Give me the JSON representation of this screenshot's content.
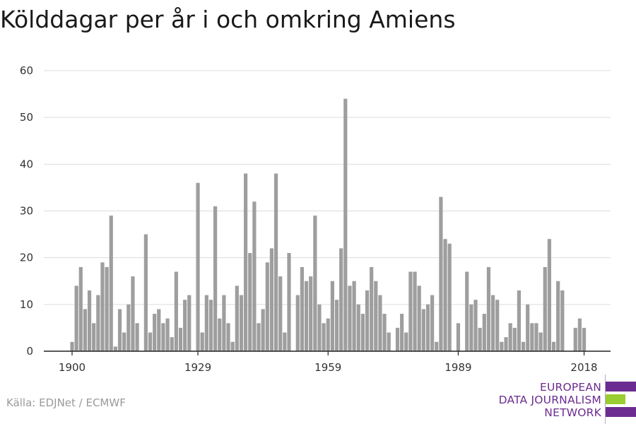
{
  "title": "Kölddagar per år i och omkring Amiens",
  "source": "Källa: EDJNet / ECMWF",
  "logo": {
    "line1": "EUROPEAN",
    "line2": "DATA JOURNALISM",
    "line3": "NETWORK"
  },
  "colors": {
    "bar": "#9e9e9e",
    "grid": "#dcdcdc",
    "axis": "#222222",
    "logo_purple": "#6b2c91",
    "logo_green": "#9acd32"
  },
  "chart_data": {
    "type": "bar",
    "title": "Kölddagar per år i och omkring Amiens",
    "xlabel": "",
    "ylabel": "",
    "ylim": [
      0,
      60
    ],
    "yticks": [
      0,
      10,
      20,
      30,
      40,
      50,
      60
    ],
    "xticks": [
      1900,
      1929,
      1959,
      1989,
      2018
    ],
    "grid": true,
    "x": [
      1900,
      1901,
      1902,
      1903,
      1904,
      1905,
      1906,
      1907,
      1908,
      1909,
      1910,
      1911,
      1912,
      1913,
      1914,
      1915,
      1916,
      1917,
      1918,
      1919,
      1920,
      1921,
      1922,
      1923,
      1924,
      1925,
      1926,
      1927,
      1928,
      1929,
      1930,
      1931,
      1932,
      1933,
      1934,
      1935,
      1936,
      1937,
      1938,
      1939,
      1940,
      1941,
      1942,
      1943,
      1944,
      1945,
      1946,
      1947,
      1948,
      1949,
      1950,
      1951,
      1952,
      1953,
      1954,
      1955,
      1956,
      1957,
      1958,
      1959,
      1960,
      1961,
      1962,
      1963,
      1964,
      1965,
      1966,
      1967,
      1968,
      1969,
      1970,
      1971,
      1972,
      1973,
      1974,
      1975,
      1976,
      1977,
      1978,
      1979,
      1980,
      1981,
      1982,
      1983,
      1984,
      1985,
      1986,
      1987,
      1988,
      1989,
      1990,
      1991,
      1992,
      1993,
      1994,
      1995,
      1996,
      1997,
      1998,
      1999,
      2000,
      2001,
      2002,
      2003,
      2004,
      2005,
      2006,
      2007,
      2008,
      2009,
      2010,
      2011,
      2012,
      2013,
      2014,
      2015,
      2016,
      2017,
      2018
    ],
    "values": [
      2,
      14,
      18,
      9,
      13,
      6,
      12,
      19,
      18,
      29,
      1,
      9,
      4,
      10,
      16,
      6,
      0,
      25,
      4,
      8,
      9,
      6,
      7,
      3,
      17,
      5,
      11,
      12,
      0,
      36,
      4,
      12,
      11,
      31,
      7,
      12,
      6,
      2,
      14,
      12,
      38,
      21,
      32,
      6,
      9,
      19,
      22,
      38,
      16,
      4,
      21,
      0,
      12,
      18,
      15,
      16,
      29,
      10,
      6,
      7,
      15,
      11,
      22,
      54,
      14,
      15,
      10,
      8,
      13,
      18,
      15,
      12,
      8,
      4,
      0,
      5,
      8,
      4,
      17,
      17,
      14,
      9,
      10,
      12,
      2,
      33,
      24,
      23,
      0,
      6,
      0,
      17,
      10,
      11,
      5,
      8,
      18,
      12,
      11,
      2,
      3,
      6,
      5,
      13,
      2,
      10,
      6,
      6,
      4,
      18,
      24,
      2,
      15,
      13,
      0,
      0,
      5,
      7,
      5
    ]
  }
}
